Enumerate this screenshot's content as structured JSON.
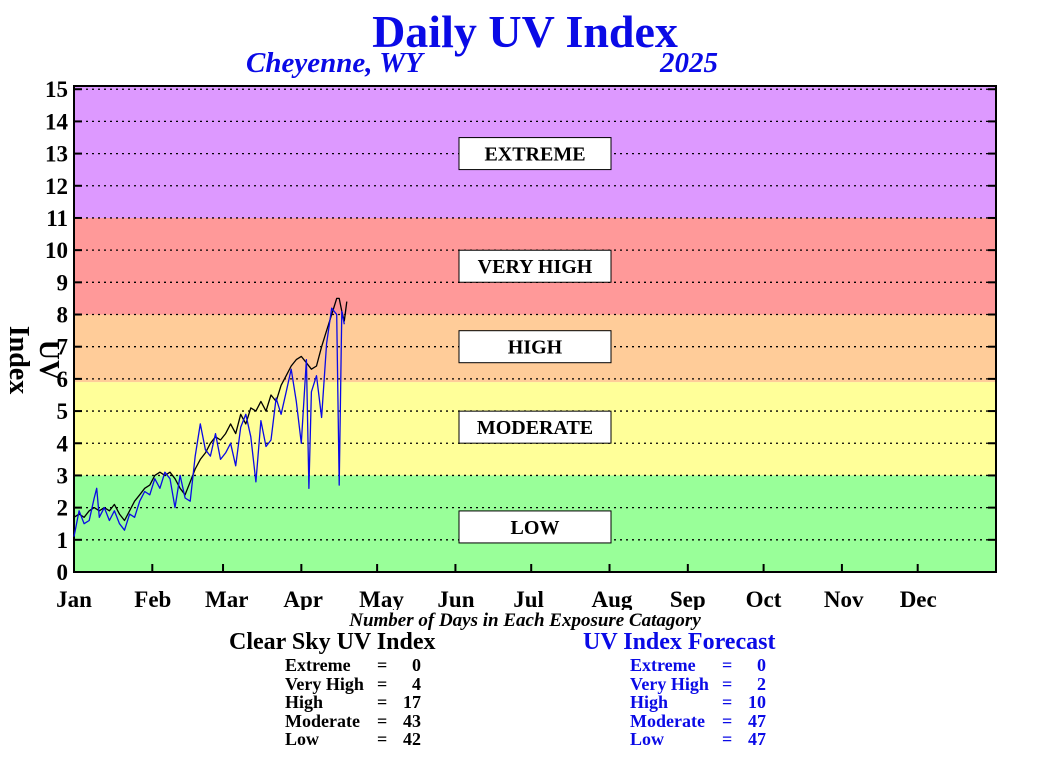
{
  "chart_data": {
    "type": "line",
    "title": "Daily UV Index",
    "location": "Cheyenne, WY",
    "year": "2025",
    "ylabel": "UV Index",
    "xlabel": "",
    "ylim": [
      0,
      15
    ],
    "xlim": [
      0,
      365
    ],
    "grid": "horizontal dotted",
    "y_ticks": [
      "0",
      "1",
      "2",
      "3",
      "4",
      "5",
      "6",
      "7",
      "8",
      "9",
      "10",
      "11",
      "12",
      "13",
      "14",
      "15"
    ],
    "x_ticks": [
      {
        "label": "Jan",
        "day": 0
      },
      {
        "label": "Feb",
        "day": 31
      },
      {
        "label": "Mar",
        "day": 59
      },
      {
        "label": "Apr",
        "day": 90
      },
      {
        "label": "May",
        "day": 120
      },
      {
        "label": "Jun",
        "day": 151
      },
      {
        "label": "Jul",
        "day": 181
      },
      {
        "label": "Aug",
        "day": 212
      },
      {
        "label": "Sep",
        "day": 243
      },
      {
        "label": "Oct",
        "day": 273
      },
      {
        "label": "Nov",
        "day": 304
      },
      {
        "label": "Dec",
        "day": 334
      }
    ],
    "bands": [
      {
        "label": "LOW",
        "from": 0,
        "to": 3,
        "color": "#99ff99"
      },
      {
        "label": "MODERATE",
        "from": 3,
        "to": 5.9,
        "color": "#ffff99"
      },
      {
        "label": "HIGH",
        "from": 5.9,
        "to": 8,
        "color": "#ffcc99"
      },
      {
        "label": "VERY HIGH",
        "from": 8,
        "to": 11,
        "color": "#ff9999"
      },
      {
        "label": "EXTREME",
        "from": 11,
        "to": 15,
        "color": "#dd99ff"
      }
    ],
    "band_label_values": [
      {
        "label": "EXTREME",
        "y": 13
      },
      {
        "label": "VERY HIGH",
        "y": 9.5
      },
      {
        "label": "HIGH",
        "y": 7
      },
      {
        "label": "MODERATE",
        "y": 4.5
      },
      {
        "label": "LOW",
        "y": 1.4
      }
    ],
    "series": [
      {
        "name": "Clear Sky UV Index",
        "color": "#000000",
        "x": [
          0,
          2,
          4,
          6,
          8,
          10,
          12,
          14,
          16,
          18,
          20,
          22,
          24,
          26,
          28,
          30,
          32,
          34,
          36,
          38,
          40,
          42,
          44,
          46,
          48,
          50,
          52,
          54,
          56,
          58,
          60,
          62,
          64,
          66,
          68,
          70,
          72,
          74,
          76,
          78,
          80,
          82,
          84,
          86,
          88,
          90,
          92,
          94,
          96,
          98,
          100,
          102,
          104,
          105,
          106,
          107,
          108
        ],
        "y": [
          1.7,
          1.8,
          1.7,
          1.9,
          2.0,
          1.9,
          2.0,
          1.9,
          2.1,
          1.8,
          1.6,
          1.9,
          2.2,
          2.4,
          2.6,
          2.7,
          3.0,
          3.1,
          3.0,
          3.1,
          2.9,
          2.6,
          2.4,
          2.8,
          3.2,
          3.5,
          3.7,
          4.0,
          4.2,
          4.1,
          4.3,
          4.6,
          4.3,
          4.9,
          4.6,
          5.1,
          5.0,
          5.3,
          5.0,
          5.5,
          5.3,
          5.8,
          6.1,
          6.4,
          6.6,
          6.7,
          6.5,
          6.3,
          6.4,
          7.0,
          7.5,
          8.0,
          8.5,
          8.5,
          8.1,
          7.8,
          8.4
        ]
      },
      {
        "name": "UV Index Forecast",
        "color": "#0a0ae6",
        "x": [
          0,
          2,
          4,
          6,
          8,
          9,
          10,
          12,
          14,
          16,
          18,
          20,
          22,
          24,
          26,
          28,
          30,
          32,
          34,
          36,
          38,
          40,
          42,
          44,
          46,
          48,
          50,
          52,
          54,
          56,
          58,
          60,
          62,
          64,
          66,
          68,
          70,
          72,
          74,
          76,
          78,
          80,
          82,
          84,
          86,
          88,
          90,
          92,
          93,
          94,
          96,
          98,
          100,
          102,
          104,
          105,
          106,
          107
        ],
        "y": [
          1.1,
          1.9,
          1.5,
          1.6,
          2.3,
          2.6,
          1.7,
          2.0,
          1.6,
          1.9,
          1.5,
          1.3,
          1.8,
          1.7,
          2.2,
          2.5,
          2.4,
          2.9,
          2.6,
          3.1,
          2.9,
          2.0,
          3.0,
          2.3,
          2.2,
          3.6,
          4.6,
          3.8,
          3.6,
          4.3,
          3.5,
          3.7,
          4.0,
          3.3,
          4.5,
          4.9,
          4.2,
          2.8,
          4.7,
          3.9,
          4.1,
          5.4,
          4.9,
          5.6,
          6.3,
          5.3,
          4.0,
          6.6,
          2.6,
          5.6,
          6.1,
          4.8,
          7.1,
          8.2,
          8.0,
          2.7,
          8.1,
          7.7
        ]
      }
    ],
    "footer_caption": "Number of Days in Each Exposure Catagory",
    "summaries": [
      {
        "title": "Clear Sky UV Index",
        "color": "#000000",
        "rows": [
          {
            "label": "Extreme",
            "value": "0"
          },
          {
            "label": "Very High",
            "value": "4"
          },
          {
            "label": "High",
            "value": "17"
          },
          {
            "label": "Moderate",
            "value": "43"
          },
          {
            "label": "Low",
            "value": "42"
          }
        ]
      },
      {
        "title": "UV Index Forecast",
        "color": "#0a0ae6",
        "rows": [
          {
            "label": "Extreme",
            "value": "0"
          },
          {
            "label": "Very High",
            "value": "2"
          },
          {
            "label": "High",
            "value": "10"
          },
          {
            "label": "Moderate",
            "value": "47"
          },
          {
            "label": "Low",
            "value": "47"
          }
        ]
      }
    ]
  }
}
